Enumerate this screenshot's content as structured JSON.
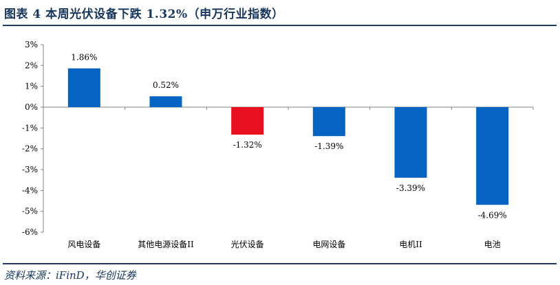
{
  "header": {
    "title": "图表  4    本周光伏设备下跌 1.32%（申万行业指数）"
  },
  "footer": {
    "source": "资料来源：iFinD，华创证券"
  },
  "chart_data": {
    "type": "bar",
    "categories": [
      "风电设备",
      "其他电源设备II",
      "光伏设备",
      "电网设备",
      "电机II",
      "电池"
    ],
    "values": [
      1.86,
      0.52,
      -1.32,
      -1.39,
      -3.39,
      -4.69
    ],
    "value_labels": [
      "1.86%",
      "0.52%",
      "-1.32%",
      "-1.39%",
      "-3.39%",
      "-4.69%"
    ],
    "ylim": [
      -6,
      3
    ],
    "yticks": [
      3,
      2,
      1,
      0,
      -1,
      -2,
      -3,
      -4,
      -5,
      -6
    ],
    "ytick_labels": [
      "3%",
      "2%",
      "1%",
      "0%",
      "-1%",
      "-2%",
      "-3%",
      "-4%",
      "-5%",
      "-6%"
    ],
    "bar_colors": [
      "#0563C1",
      "#0563C1",
      "#E8101E",
      "#0563C1",
      "#0563C1",
      "#0563C1"
    ],
    "grid": false,
    "legend": "none",
    "xlabel": "",
    "ylabel": ""
  }
}
